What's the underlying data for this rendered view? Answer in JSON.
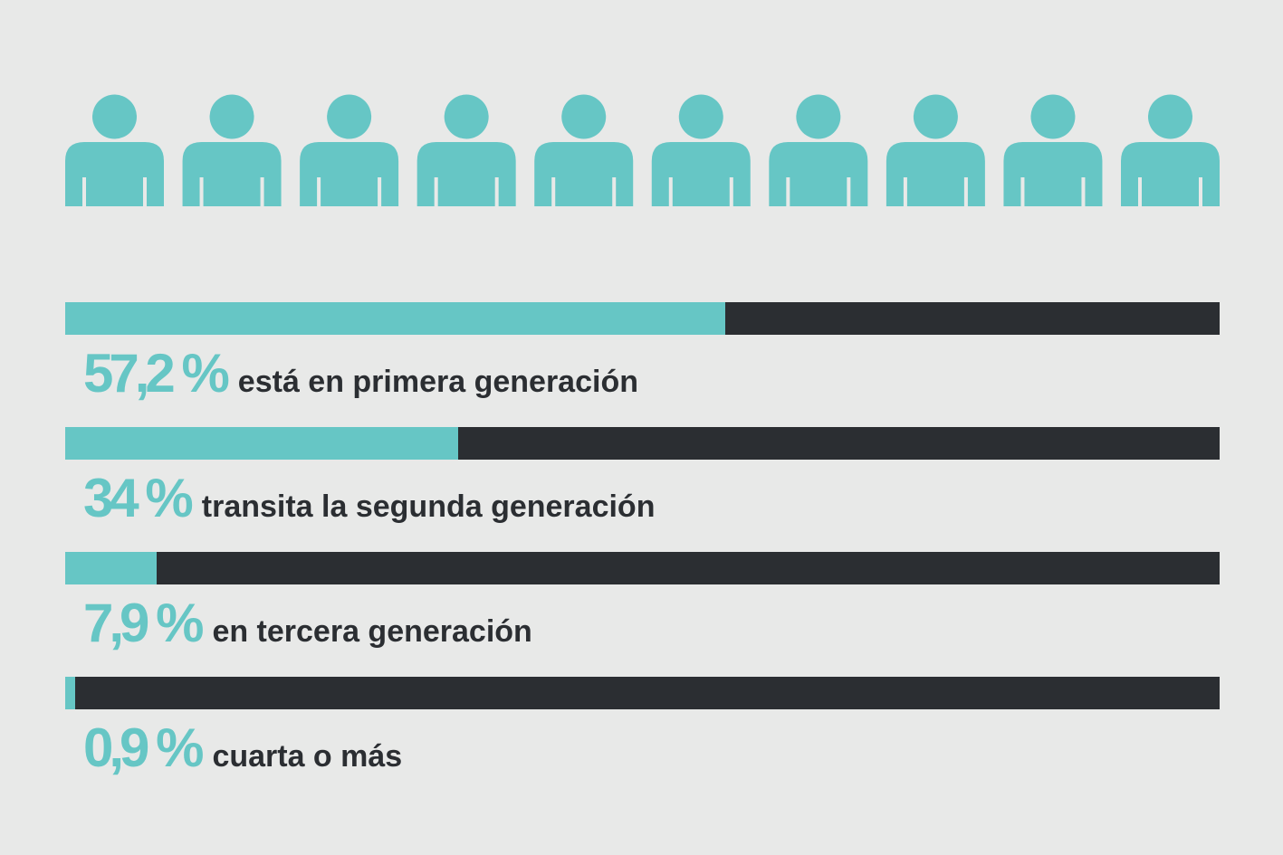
{
  "colors": {
    "background": "#e8e9e8",
    "accent": "#66c6c5",
    "dark": "#2b2e32"
  },
  "icons": {
    "name": "person-icon",
    "count": 10
  },
  "chart_data": {
    "type": "bar",
    "orientation": "horizontal",
    "max": 100,
    "items": [
      {
        "value": 57.2,
        "value_label": "57,2 %",
        "label": "está en primera generación"
      },
      {
        "value": 34,
        "value_label": "34 %",
        "label": "transita la segunda generación"
      },
      {
        "value": 7.9,
        "value_label": "7,9 %",
        "label": "en tercera generación"
      },
      {
        "value": 0.9,
        "value_label": "0,9 %",
        "label": "cuarta o más"
      }
    ]
  }
}
